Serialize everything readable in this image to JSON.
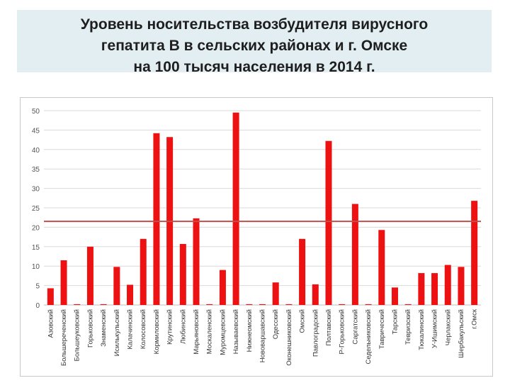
{
  "title_lines": [
    "Уровень носительства возбудителя  вирусного",
    "гепатита В в сельских районах и г. Омске",
    "на 100 тысяч населения в 2014 г."
  ],
  "colors": {
    "bar": "#ee1111",
    "reference_line": "#c0504d",
    "grid": "#d9d9d9",
    "tick_text": "#555555"
  },
  "chart_data": {
    "type": "bar",
    "title": "Уровень носительства возбудителя вирусного гепатита В в сельских районах и г. Омске на 100 тысяч населения в 2014 г.",
    "xlabel": "",
    "ylabel": "",
    "ylim": [
      0,
      50
    ],
    "yticks": [
      0,
      5,
      10,
      15,
      20,
      25,
      30,
      35,
      40,
      45,
      50
    ],
    "grid": true,
    "reference_line": 21.5,
    "categories": [
      "Азовский",
      "Большереченский",
      "Большеуковский",
      "Горьковский",
      "Знаменский",
      "Исилькульский",
      "Калачинский",
      "Колосовский",
      "Кормиловский",
      "Крутинский",
      "Любинский",
      "Марьяновский",
      "Москаленский",
      "Муромцевский",
      "Называевский",
      "Нижнеомский",
      "Нововаршавский",
      "Одесский",
      "Оконешниковский",
      "Омский",
      "Павлоградский",
      "Полтавский",
      "Р-Горьковский",
      "Саргатский",
      "Седельниковский",
      "Таврический",
      "Тарский",
      "Тевризский",
      "Тюкалинский",
      "У-Ишимский",
      "Черлакский",
      "Шербакульский",
      "г.Омск"
    ],
    "values": [
      4.3,
      11.5,
      0.2,
      15,
      0.2,
      9.8,
      5.2,
      17,
      44.2,
      43.2,
      15.7,
      22.3,
      0.2,
      9,
      49.5,
      0.2,
      0.2,
      5.8,
      0.2,
      17,
      5.3,
      42.2,
      0.2,
      26,
      0.2,
      19.3,
      4.5,
      0.2,
      8.2,
      8.2,
      10.3,
      9.8,
      26.8
    ]
  }
}
